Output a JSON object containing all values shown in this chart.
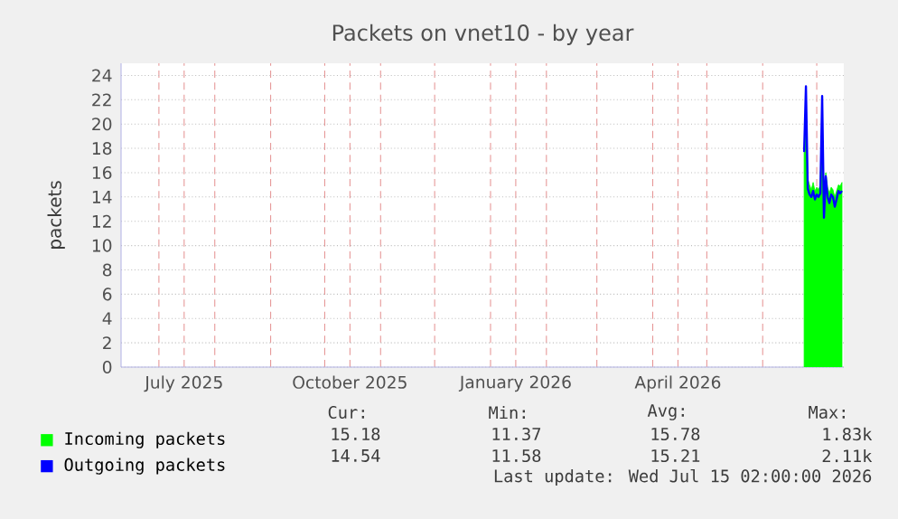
{
  "chart_data": {
    "type": "area",
    "title": "Packets on vnet10 - by year",
    "ylabel": "packets",
    "xlim": [
      "2025-06-10",
      "2026-07-16"
    ],
    "ylim": [
      0,
      25
    ],
    "xticks": [
      {
        "value": "2025-07-01",
        "label": null
      },
      {
        "value": "2025-07-15",
        "label": "July 2025"
      },
      {
        "value": "2025-08-01",
        "label": null
      },
      {
        "value": "2025-09-01",
        "label": null
      },
      {
        "value": "2025-10-01",
        "label": null
      },
      {
        "value": "2025-10-15",
        "label": "October 2025"
      },
      {
        "value": "2025-11-01",
        "label": null
      },
      {
        "value": "2025-12-01",
        "label": null
      },
      {
        "value": "2026-01-01",
        "label": null
      },
      {
        "value": "2026-01-15",
        "label": "January 2026"
      },
      {
        "value": "2026-02-01",
        "label": null
      },
      {
        "value": "2026-03-01",
        "label": null
      },
      {
        "value": "2026-04-01",
        "label": null
      },
      {
        "value": "2026-04-15",
        "label": "April 2026"
      },
      {
        "value": "2026-05-01",
        "label": null
      },
      {
        "value": "2026-06-01",
        "label": null
      },
      {
        "value": "2026-07-01",
        "label": null
      }
    ],
    "yticks": [
      0,
      2,
      4,
      6,
      8,
      10,
      12,
      14,
      16,
      18,
      20,
      22,
      24
    ],
    "grid": true,
    "legend": "bottom left",
    "x": [
      "2026-06-24",
      "2026-06-25",
      "2026-06-26",
      "2026-06-27",
      "2026-06-28",
      "2026-06-29",
      "2026-06-30",
      "2026-07-01",
      "2026-07-02",
      "2026-07-03",
      "2026-07-04",
      "2026-07-05",
      "2026-07-06",
      "2026-07-07",
      "2026-07-08",
      "2026-07-09",
      "2026-07-10",
      "2026-07-11",
      "2026-07-12",
      "2026-07-13",
      "2026-07-14",
      "2026-07-15"
    ],
    "series": [
      {
        "name": "Incoming packets",
        "color": "#00ff00",
        "values": [
          17.9,
          21.5,
          15.5,
          15.0,
          14.6,
          15.2,
          14.5,
          14.8,
          14.6,
          15.0,
          20.5,
          13.2,
          16.0,
          14.8,
          14.3,
          14.8,
          14.6,
          14.0,
          14.5,
          15.0,
          14.9,
          15.2
        ]
      },
      {
        "name": "Outgoing packets",
        "color": "#0000ff",
        "type": "line",
        "values": [
          17.7,
          23.1,
          14.7,
          14.2,
          14.0,
          14.5,
          13.8,
          14.2,
          14.0,
          14.3,
          22.3,
          12.3,
          15.7,
          14.0,
          13.5,
          14.2,
          14.0,
          13.2,
          13.8,
          14.5,
          14.3,
          14.5
        ]
      }
    ],
    "annotations": [
      "Cur:",
      "Min:",
      "Avg:",
      "Max:",
      "15.18",
      "11.37",
      "15.78",
      "1.83k",
      "14.54",
      "11.58",
      "15.21",
      "2.11k",
      "Last update: Wed Jul 15 02:00:00 2026"
    ]
  }
}
